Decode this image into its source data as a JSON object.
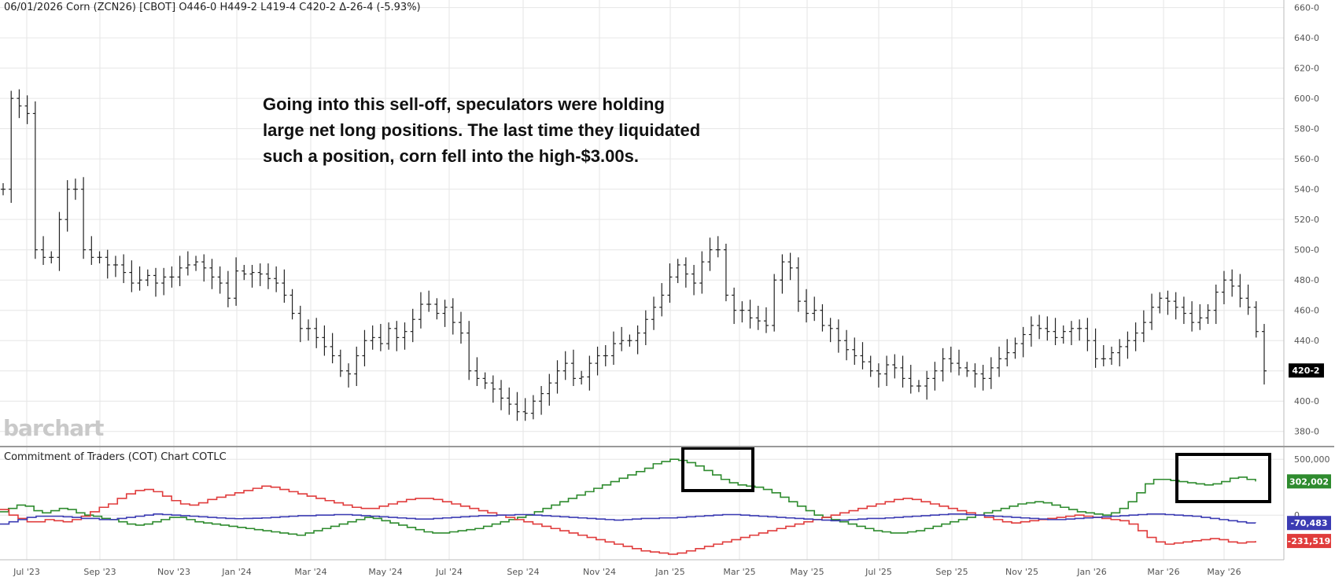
{
  "header": {
    "quote": "06/01/2026 Corn (ZCN26) [CBOT] O446-0 H449-2 L419-4 C420-2 Δ-26-4 (-5.93%)"
  },
  "annotation": {
    "lines": [
      "Going into this sell-off, speculators were holding",
      "large net long positions. The last time they liquidated",
      "such a position, corn fell into the high-$3.00s."
    ]
  },
  "watermark": "barchart",
  "cot_title": "Commitment of Traders (COT) Chart  COTLC",
  "colors": {
    "price": "#222222",
    "noncommercial": "#2e8b2e",
    "commercial": "#e03c3c",
    "small": "#3b3bb3",
    "last_price_bg": "#000000",
    "grid": "#e6e6e6"
  },
  "chart_data": [
    {
      "type": "ohlc-bar",
      "title": "06/01/2026 Corn (ZCN26) [CBOT]",
      "ylim": [
        370,
        665
      ],
      "y_ticks": [
        "660-0",
        "640-0",
        "620-0",
        "600-0",
        "580-0",
        "560-0",
        "540-0",
        "520-0",
        "500-0",
        "480-0",
        "460-0",
        "440-0",
        "420-0",
        "400-0",
        "380-0"
      ],
      "x_ticks": [
        "Jul '23",
        "Sep '23",
        "Nov '23",
        "Jan '24",
        "Mar '24",
        "May '24",
        "Jul '24",
        "Sep '24",
        "Nov '24",
        "Jan '25",
        "Mar '25",
        "May '25",
        "Jul '25",
        "Sep '25",
        "Nov '25",
        "Jan '26",
        "Mar '26",
        "May '26"
      ],
      "last_price_label": "420-2",
      "ohlc_summary": {
        "open": "446-0",
        "high": "449-2",
        "low": "419-4",
        "close": "420-2",
        "change": "-26-4",
        "change_pct": "-5.93%"
      },
      "weekly_closes": [
        540,
        600,
        595,
        590,
        500,
        495,
        495,
        520,
        540,
        540,
        500,
        495,
        495,
        490,
        490,
        485,
        478,
        480,
        483,
        478,
        482,
        482,
        488,
        490,
        492,
        488,
        482,
        478,
        468,
        486,
        484,
        485,
        484,
        481,
        478,
        470,
        458,
        448,
        448,
        442,
        436,
        430,
        420,
        418,
        430,
        440,
        442,
        438,
        448,
        442,
        446,
        454,
        464,
        464,
        458,
        462,
        452,
        445,
        420,
        415,
        412,
        408,
        402,
        398,
        393,
        392,
        400,
        405,
        412,
        420,
        425,
        415,
        416,
        425,
        430,
        430,
        438,
        440,
        440,
        445,
        454,
        462,
        470,
        482,
        490,
        484,
        478,
        492,
        500,
        500,
        470,
        460,
        460,
        455,
        453,
        450,
        480,
        492,
        488,
        466,
        458,
        460,
        450,
        448,
        440,
        434,
        430,
        426,
        420,
        418,
        424,
        422,
        415,
        410,
        410,
        415,
        420,
        428,
        425,
        422,
        420,
        418,
        415,
        422,
        428,
        432,
        438,
        444,
        450,
        448,
        446,
        442,
        446,
        448,
        448,
        440,
        428,
        428,
        432,
        436,
        440,
        445,
        452,
        462,
        468,
        466,
        462,
        458,
        452,
        455,
        460,
        472,
        480,
        476,
        468,
        462,
        446,
        420
      ]
    },
    {
      "type": "line",
      "title": "Commitment of Traders (COT) Chart  COTLC",
      "ylim": [
        -400000,
        600000
      ],
      "y_ticks": [
        "500,000",
        "0"
      ],
      "series": [
        {
          "values": [
            -80000,
            -60000,
            -40000,
            -20000,
            -10000,
            -10000,
            -10000,
            -15000,
            -20000,
            -30000,
            -30000,
            -40000,
            -40000,
            -30000,
            -20000,
            -10000,
            0,
            10000,
            5000,
            0,
            -5000,
            -10000,
            -15000,
            -20000,
            -25000,
            -30000,
            -32000,
            -30000,
            -28000,
            -25000,
            -20000,
            -15000,
            -10000,
            -5000,
            -5000,
            0,
            0,
            5000,
            5000,
            0,
            -5000,
            -10000,
            -15000,
            -20000,
            -25000,
            -30000,
            -35000,
            -35000,
            -30000,
            -25000,
            -20000,
            -15000,
            -10000,
            -5000,
            -5000,
            0,
            0,
            5000,
            5000,
            0,
            -5000,
            -10000,
            -15000,
            -20000,
            -25000,
            -30000,
            -35000,
            -40000,
            -45000,
            -40000,
            -35000,
            -30000,
            -30000,
            -25000,
            -25000,
            -20000,
            -15000,
            -10000,
            -5000,
            0,
            5000,
            5000,
            0,
            -5000,
            -10000,
            -15000,
            -20000,
            -25000,
            -30000,
            -35000,
            -40000,
            -45000,
            -50000,
            -45000,
            -40000,
            -35000,
            -30000,
            -30000,
            -25000,
            -20000,
            -15000,
            -10000,
            -5000,
            0,
            5000,
            10000,
            10000,
            5000,
            0,
            -5000,
            -10000,
            -15000,
            -20000,
            -25000,
            -30000,
            -35000,
            -40000,
            -40000,
            -35000,
            -30000,
            -25000,
            -20000,
            -15000,
            -10000,
            -5000,
            0,
            5000,
            10000,
            10000,
            5000,
            0,
            -5000,
            -10000,
            -20000,
            -30000,
            -40000,
            -50000,
            -60000,
            -70000,
            -70483
          ]
        },
        {
          "values": [
            30000,
            60000,
            90000,
            80000,
            40000,
            20000,
            40000,
            60000,
            50000,
            20000,
            0,
            -10000,
            -30000,
            -40000,
            -60000,
            -80000,
            -90000,
            -80000,
            -60000,
            -40000,
            -20000,
            -20000,
            -40000,
            -60000,
            -70000,
            -80000,
            -90000,
            -100000,
            -110000,
            -120000,
            -130000,
            -140000,
            -150000,
            -160000,
            -170000,
            -180000,
            -160000,
            -140000,
            -120000,
            -100000,
            -80000,
            -60000,
            -40000,
            -20000,
            -30000,
            -50000,
            -70000,
            -90000,
            -110000,
            -130000,
            -150000,
            -160000,
            -160000,
            -150000,
            -140000,
            -130000,
            -120000,
            -100000,
            -80000,
            -60000,
            -40000,
            -20000,
            0,
            30000,
            60000,
            90000,
            120000,
            150000,
            180000,
            210000,
            240000,
            270000,
            300000,
            330000,
            360000,
            390000,
            420000,
            460000,
            480000,
            500000,
            490000,
            470000,
            440000,
            400000,
            360000,
            320000,
            290000,
            270000,
            260000,
            250000,
            230000,
            200000,
            160000,
            120000,
            80000,
            40000,
            0,
            -20000,
            -40000,
            -60000,
            -80000,
            -100000,
            -120000,
            -140000,
            -150000,
            -160000,
            -160000,
            -150000,
            -140000,
            -120000,
            -100000,
            -80000,
            -60000,
            -40000,
            -20000,
            0,
            20000,
            40000,
            60000,
            80000,
            100000,
            110000,
            120000,
            110000,
            90000,
            70000,
            50000,
            30000,
            20000,
            10000,
            0,
            20000,
            60000,
            120000,
            200000,
            280000,
            320000,
            320000,
            310000,
            300000,
            290000,
            280000,
            270000,
            280000,
            300000,
            330000,
            340000,
            320000,
            302002
          ]
        },
        {
          "values": [
            50000,
            0,
            -30000,
            -60000,
            -60000,
            -40000,
            -50000,
            -60000,
            -40000,
            -10000,
            30000,
            70000,
            100000,
            150000,
            190000,
            220000,
            230000,
            210000,
            170000,
            130000,
            100000,
            90000,
            110000,
            140000,
            160000,
            180000,
            200000,
            220000,
            240000,
            260000,
            250000,
            230000,
            210000,
            190000,
            170000,
            150000,
            130000,
            110000,
            90000,
            70000,
            60000,
            60000,
            80000,
            100000,
            120000,
            140000,
            150000,
            150000,
            140000,
            120000,
            100000,
            80000,
            60000,
            40000,
            20000,
            0,
            -20000,
            -40000,
            -60000,
            -80000,
            -100000,
            -120000,
            -140000,
            -160000,
            -180000,
            -200000,
            -220000,
            -240000,
            -260000,
            -280000,
            -300000,
            -320000,
            -330000,
            -340000,
            -350000,
            -340000,
            -320000,
            -300000,
            -280000,
            -260000,
            -240000,
            -220000,
            -200000,
            -180000,
            -160000,
            -140000,
            -120000,
            -100000,
            -80000,
            -60000,
            -40000,
            -20000,
            0,
            20000,
            40000,
            60000,
            80000,
            100000,
            120000,
            140000,
            150000,
            140000,
            120000,
            100000,
            80000,
            60000,
            40000,
            20000,
            0,
            -20000,
            -40000,
            -60000,
            -70000,
            -60000,
            -50000,
            -40000,
            -30000,
            -20000,
            -10000,
            0,
            -10000,
            -20000,
            -30000,
            -40000,
            -50000,
            -80000,
            -140000,
            -200000,
            -240000,
            -260000,
            -250000,
            -240000,
            -230000,
            -220000,
            -210000,
            -220000,
            -240000,
            -250000,
            -240000,
            -231519
          ]
        }
      ],
      "last_value_labels": [
        {
          "text": "302,002",
          "color": "#2e8b2e"
        },
        {
          "text": "-70,483",
          "color": "#3b3bb3"
        },
        {
          "text": "-231,519",
          "color": "#e03c3c"
        }
      ]
    }
  ]
}
